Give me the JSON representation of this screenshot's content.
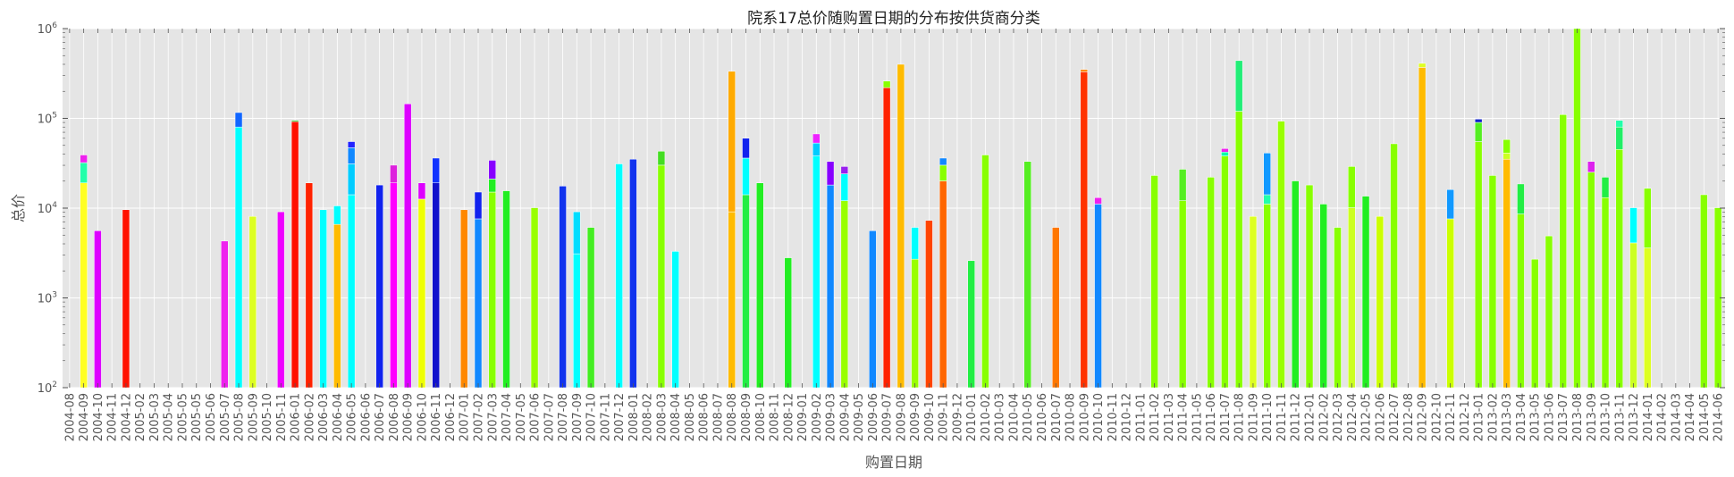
{
  "chart_data": {
    "type": "bar",
    "stacked": true,
    "title": "院系17总价随购置日期的分布按供货商分类",
    "xlabel": "购置日期",
    "ylabel": "总价",
    "y_scale": "log",
    "ylim": [
      100,
      1000000
    ],
    "y_ticks": [
      {
        "value": 100,
        "base": "10",
        "exp": "2"
      },
      {
        "value": 1000,
        "base": "10",
        "exp": "3"
      },
      {
        "value": 10000,
        "base": "10",
        "exp": "4"
      },
      {
        "value": 100000,
        "base": "10",
        "exp": "5"
      },
      {
        "value": 1000000,
        "base": "10",
        "exp": "6"
      }
    ],
    "grid": true,
    "legend": "none",
    "background": "#e5e5e5",
    "categories": [
      "2004-08",
      "2004-09",
      "2004-10",
      "2004-11",
      "2004-12",
      "2005-02",
      "2005-03",
      "2005-04",
      "2005-05",
      "2005-05",
      "2005-06",
      "2005-07",
      "2005-08",
      "2005-09",
      "2005-10",
      "2005-11",
      "2006-01",
      "2006-02",
      "2006-03",
      "2006-04",
      "2006-05",
      "2006-06",
      "2006-07",
      "2006-08",
      "2006-09",
      "2006-10",
      "2006-11",
      "2006-12",
      "2007-01",
      "2007-02",
      "2007-03",
      "2007-04",
      "2007-05",
      "2007-06",
      "2007-07",
      "2007-08",
      "2007-09",
      "2007-10",
      "2007-11",
      "2007-12",
      "2008-01",
      "2008-02",
      "2008-03",
      "2008-04",
      "2008-05",
      "2008-06",
      "2008-07",
      "2008-08",
      "2008-09",
      "2008-10",
      "2008-11",
      "2008-12",
      "2009-01",
      "2009-02",
      "2009-03",
      "2009-04",
      "2009-05",
      "2009-06",
      "2009-07",
      "2009-08",
      "2009-09",
      "2009-10",
      "2009-11",
      "2009-12",
      "2010-01",
      "2010-02",
      "2010-03",
      "2010-04",
      "2010-05",
      "2010-06",
      "2010-07",
      "2010-08",
      "2010-09",
      "2010-10",
      "2010-11",
      "2010-12",
      "2011-01",
      "2011-02",
      "2011-03",
      "2011-04",
      "2011-05",
      "2011-06",
      "2011-07",
      "2011-08",
      "2011-09",
      "2011-10",
      "2011-11",
      "2011-12",
      "2012-01",
      "2012-02",
      "2012-03",
      "2012-04",
      "2012-05",
      "2012-06",
      "2012-07",
      "2012-08",
      "2012-09",
      "2012-10",
      "2012-11",
      "2012-12",
      "2013-01",
      "2013-02",
      "2013-03",
      "2013-04",
      "2013-05",
      "2013-06",
      "2013-07",
      "2013-08",
      "2013-09",
      "2013-10",
      "2013-11",
      "2013-12",
      "2014-01",
      "2014-02",
      "2014-03",
      "2014-04",
      "2014-05",
      "2014-06"
    ],
    "bars": [
      {
        "i": 1,
        "segments": [
          {
            "value": 19000,
            "color": "#ffff22"
          },
          {
            "value": 13000,
            "color": "#22ffaa"
          },
          {
            "value": 7000,
            "color": "#ee22ee"
          }
        ]
      },
      {
        "i": 2,
        "segments": [
          {
            "value": 5500,
            "color": "#dd00ff"
          }
        ]
      },
      {
        "i": 4,
        "segments": [
          {
            "value": 9500,
            "color": "#ff1100"
          }
        ]
      },
      {
        "i": 11,
        "segments": [
          {
            "value": 4200,
            "color": "#ee22ee"
          }
        ]
      },
      {
        "i": 12,
        "segments": [
          {
            "value": 80000,
            "color": "#00ffff"
          },
          {
            "value": 36000,
            "color": "#1166ff"
          }
        ]
      },
      {
        "i": 13,
        "segments": [
          {
            "value": 8000,
            "color": "#ddff22"
          }
        ]
      },
      {
        "i": 15,
        "segments": [
          {
            "value": 9000,
            "color": "#ee00ff"
          }
        ]
      },
      {
        "i": 16,
        "segments": [
          {
            "value": 92000,
            "color": "#ff1100"
          },
          {
            "value": 3000,
            "color": "#22cc22"
          }
        ]
      },
      {
        "i": 17,
        "segments": [
          {
            "value": 19000,
            "color": "#ff2200"
          }
        ]
      },
      {
        "i": 18,
        "segments": [
          {
            "value": 9500,
            "color": "#00ffff"
          }
        ]
      },
      {
        "i": 19,
        "segments": [
          {
            "value": 6500,
            "color": "#ffbb00"
          },
          {
            "value": 4000,
            "color": "#00ffff"
          }
        ]
      },
      {
        "i": 20,
        "segments": [
          {
            "value": 14000,
            "color": "#00ffff"
          },
          {
            "value": 17000,
            "color": "#00ccff"
          },
          {
            "value": 16000,
            "color": "#1188ff"
          },
          {
            "value": 8000,
            "color": "#2222ff"
          }
        ]
      },
      {
        "i": 22,
        "segments": [
          {
            "value": 18000,
            "color": "#1122ee"
          }
        ]
      },
      {
        "i": 23,
        "segments": [
          {
            "value": 19000,
            "color": "#ff00ff"
          },
          {
            "value": 11000,
            "color": "#dd22dd"
          }
        ]
      },
      {
        "i": 24,
        "segments": [
          {
            "value": 145000,
            "color": "#dd00ff"
          }
        ]
      },
      {
        "i": 25,
        "segments": [
          {
            "value": 12500,
            "color": "#eeff00"
          },
          {
            "value": 6500,
            "color": "#dd00ff"
          }
        ]
      },
      {
        "i": 26,
        "segments": [
          {
            "value": 19000,
            "color": "#1111cc"
          },
          {
            "value": 17000,
            "color": "#1133ff"
          }
        ]
      },
      {
        "i": 28,
        "segments": [
          {
            "value": 9500,
            "color": "#ff8800"
          }
        ]
      },
      {
        "i": 29,
        "segments": [
          {
            "value": 7500,
            "color": "#1188ff"
          },
          {
            "value": 7500,
            "color": "#1122ee"
          }
        ]
      },
      {
        "i": 30,
        "segments": [
          {
            "value": 15000,
            "color": "#88ff00"
          },
          {
            "value": 6000,
            "color": "#22ee22"
          },
          {
            "value": 13000,
            "color": "#8800ff"
          }
        ]
      },
      {
        "i": 31,
        "segments": [
          {
            "value": 15500,
            "color": "#22ee22"
          }
        ]
      },
      {
        "i": 33,
        "segments": [
          {
            "value": 10000,
            "color": "#99ff00"
          }
        ]
      },
      {
        "i": 35,
        "segments": [
          {
            "value": 17500,
            "color": "#1133ee"
          }
        ]
      },
      {
        "i": 36,
        "segments": [
          {
            "value": 3000,
            "color": "#00ffff"
          },
          {
            "value": 6000,
            "color": "#00ddff"
          }
        ]
      },
      {
        "i": 37,
        "segments": [
          {
            "value": 6000,
            "color": "#44ee22"
          }
        ]
      },
      {
        "i": 39,
        "segments": [
          {
            "value": 31000,
            "color": "#00ffff"
          }
        ]
      },
      {
        "i": 40,
        "segments": [
          {
            "value": 35000,
            "color": "#1133ee"
          }
        ]
      },
      {
        "i": 42,
        "segments": [
          {
            "value": 30000,
            "color": "#88ff00"
          },
          {
            "value": 13000,
            "color": "#44dd22"
          }
        ]
      },
      {
        "i": 43,
        "segments": [
          {
            "value": 3200,
            "color": "#00ffff"
          }
        ]
      },
      {
        "i": 47,
        "segments": [
          {
            "value": 9000,
            "color": "#ffbb00"
          },
          {
            "value": 325000,
            "color": "#ffaa00"
          }
        ]
      },
      {
        "i": 48,
        "segments": [
          {
            "value": 14000,
            "color": "#22ee44"
          },
          {
            "value": 22000,
            "color": "#00ffff"
          },
          {
            "value": 24000,
            "color": "#1122ee"
          }
        ]
      },
      {
        "i": 49,
        "segments": [
          {
            "value": 19000,
            "color": "#22ee22"
          }
        ]
      },
      {
        "i": 51,
        "segments": [
          {
            "value": 2700,
            "color": "#22ee22"
          }
        ]
      },
      {
        "i": 53,
        "segments": [
          {
            "value": 38000,
            "color": "#00ffff"
          },
          {
            "value": 15000,
            "color": "#00ccff"
          },
          {
            "value": 14000,
            "color": "#ee22ff"
          }
        ]
      },
      {
        "i": 54,
        "segments": [
          {
            "value": 18000,
            "color": "#1188ff"
          },
          {
            "value": 15000,
            "color": "#8800ff"
          }
        ]
      },
      {
        "i": 55,
        "segments": [
          {
            "value": 12000,
            "color": "#99ff00"
          },
          {
            "value": 12000,
            "color": "#00ffff"
          },
          {
            "value": 5000,
            "color": "#9922ee"
          }
        ]
      },
      {
        "i": 57,
        "segments": [
          {
            "value": 5500,
            "color": "#1188ff"
          }
        ]
      },
      {
        "i": 58,
        "segments": [
          {
            "value": 220000,
            "color": "#ff2200"
          },
          {
            "value": 40000,
            "color": "#88ff00"
          }
        ]
      },
      {
        "i": 59,
        "segments": [
          {
            "value": 400000,
            "color": "#ffbb00"
          }
        ]
      },
      {
        "i": 60,
        "segments": [
          {
            "value": 2600,
            "color": "#99ff00"
          },
          {
            "value": 3400,
            "color": "#00ffff"
          }
        ]
      },
      {
        "i": 61,
        "segments": [
          {
            "value": 7200,
            "color": "#ff4400"
          }
        ]
      },
      {
        "i": 62,
        "segments": [
          {
            "value": 20000,
            "color": "#ff6600"
          },
          {
            "value": 10000,
            "color": "#88ff00"
          },
          {
            "value": 6000,
            "color": "#1188ff"
          }
        ]
      },
      {
        "i": 64,
        "segments": [
          {
            "value": 2500,
            "color": "#22ee44"
          }
        ]
      },
      {
        "i": 65,
        "segments": [
          {
            "value": 39000,
            "color": "#88ff00"
          }
        ]
      },
      {
        "i": 68,
        "segments": [
          {
            "value": 33000,
            "color": "#55ee22"
          }
        ]
      },
      {
        "i": 70,
        "segments": [
          {
            "value": 6000,
            "color": "#ff7700"
          }
        ]
      },
      {
        "i": 72,
        "segments": [
          {
            "value": 330000,
            "color": "#ff3300"
          },
          {
            "value": 20000,
            "color": "#ff8800"
          }
        ]
      },
      {
        "i": 73,
        "segments": [
          {
            "value": 11000,
            "color": "#1188ff"
          },
          {
            "value": 2000,
            "color": "#ee22ee"
          }
        ]
      },
      {
        "i": 77,
        "segments": [
          {
            "value": 23000,
            "color": "#88ff00"
          }
        ]
      },
      {
        "i": 79,
        "segments": [
          {
            "value": 12000,
            "color": "#88ff00"
          },
          {
            "value": 15000,
            "color": "#55ee22"
          }
        ]
      },
      {
        "i": 81,
        "segments": [
          {
            "value": 22000,
            "color": "#88ff00"
          }
        ]
      },
      {
        "i": 82,
        "segments": [
          {
            "value": 38000,
            "color": "#88ff00"
          },
          {
            "value": 4000,
            "color": "#00ffaa"
          },
          {
            "value": 4000,
            "color": "#ee22ee"
          }
        ]
      },
      {
        "i": 83,
        "segments": [
          {
            "value": 120000,
            "color": "#88ff00"
          },
          {
            "value": 320000,
            "color": "#22ee77"
          }
        ]
      },
      {
        "i": 84,
        "segments": [
          {
            "value": 8000,
            "color": "#ddff22"
          }
        ]
      },
      {
        "i": 85,
        "segments": [
          {
            "value": 11000,
            "color": "#88ff00"
          },
          {
            "value": 3000,
            "color": "#22ffaa"
          },
          {
            "value": 27000,
            "color": "#1199ff"
          }
        ]
      },
      {
        "i": 86,
        "segments": [
          {
            "value": 93000,
            "color": "#99ff00"
          }
        ]
      },
      {
        "i": 87,
        "segments": [
          {
            "value": 20000,
            "color": "#22ee22"
          }
        ]
      },
      {
        "i": 88,
        "segments": [
          {
            "value": 18000,
            "color": "#88ff00"
          }
        ]
      },
      {
        "i": 89,
        "segments": [
          {
            "value": 11000,
            "color": "#22ee22"
          }
        ]
      },
      {
        "i": 90,
        "segments": [
          {
            "value": 6000,
            "color": "#88ff00"
          }
        ]
      },
      {
        "i": 91,
        "segments": [
          {
            "value": 10000,
            "color": "#ccff22"
          },
          {
            "value": 19000,
            "color": "#88ff00"
          }
        ]
      },
      {
        "i": 92,
        "segments": [
          {
            "value": 13500,
            "color": "#22ee22"
          }
        ]
      },
      {
        "i": 93,
        "segments": [
          {
            "value": 8000,
            "color": "#ccff00"
          }
        ]
      },
      {
        "i": 94,
        "segments": [
          {
            "value": 52000,
            "color": "#88ff00"
          }
        ]
      },
      {
        "i": 96,
        "segments": [
          {
            "value": 370000,
            "color": "#ffbb00"
          },
          {
            "value": 40000,
            "color": "#ddff22"
          }
        ]
      },
      {
        "i": 98,
        "segments": [
          {
            "value": 7500,
            "color": "#ccff00"
          },
          {
            "value": 8500,
            "color": "#1199ff"
          }
        ]
      },
      {
        "i": 100,
        "segments": [
          {
            "value": 55000,
            "color": "#88ff00"
          },
          {
            "value": 35000,
            "color": "#55ee22"
          },
          {
            "value": 8000,
            "color": "#1122cc"
          }
        ]
      },
      {
        "i": 101,
        "segments": [
          {
            "value": 23000,
            "color": "#88ff00"
          }
        ]
      },
      {
        "i": 102,
        "segments": [
          {
            "value": 35000,
            "color": "#ffbb00"
          },
          {
            "value": 6000,
            "color": "#ccff22"
          },
          {
            "value": 17000,
            "color": "#88ff00"
          }
        ]
      },
      {
        "i": 103,
        "segments": [
          {
            "value": 8500,
            "color": "#88ff00"
          },
          {
            "value": 10000,
            "color": "#22ee44"
          }
        ]
      },
      {
        "i": 104,
        "segments": [
          {
            "value": 2600,
            "color": "#88ff00"
          }
        ]
      },
      {
        "i": 105,
        "segments": [
          {
            "value": 4800,
            "color": "#88ff00"
          }
        ]
      },
      {
        "i": 106,
        "segments": [
          {
            "value": 110000,
            "color": "#88ff00"
          }
        ]
      },
      {
        "i": 107,
        "segments": [
          {
            "value": 1000000,
            "color": "#88ff00"
          }
        ]
      },
      {
        "i": 108,
        "segments": [
          {
            "value": 25000,
            "color": "#88ff00"
          },
          {
            "value": 8000,
            "color": "#dd22ee"
          }
        ]
      },
      {
        "i": 109,
        "segments": [
          {
            "value": 13000,
            "color": "#88ff00"
          },
          {
            "value": 9000,
            "color": "#22ee44"
          }
        ]
      },
      {
        "i": 110,
        "segments": [
          {
            "value": 45000,
            "color": "#88ff00"
          },
          {
            "value": 35000,
            "color": "#22ee66"
          },
          {
            "value": 15000,
            "color": "#22ffaa"
          }
        ]
      },
      {
        "i": 111,
        "segments": [
          {
            "value": 4000,
            "color": "#ccff22"
          },
          {
            "value": 6000,
            "color": "#00ffff"
          }
        ]
      },
      {
        "i": 112,
        "segments": [
          {
            "value": 3500,
            "color": "#ddff22"
          },
          {
            "value": 13000,
            "color": "#88ff00"
          }
        ]
      },
      {
        "i": 116,
        "segments": [
          {
            "value": 14000,
            "color": "#88ff00"
          }
        ]
      },
      {
        "i": 117,
        "segments": [
          {
            "value": 10000,
            "color": "#88ff00"
          }
        ]
      }
    ]
  }
}
